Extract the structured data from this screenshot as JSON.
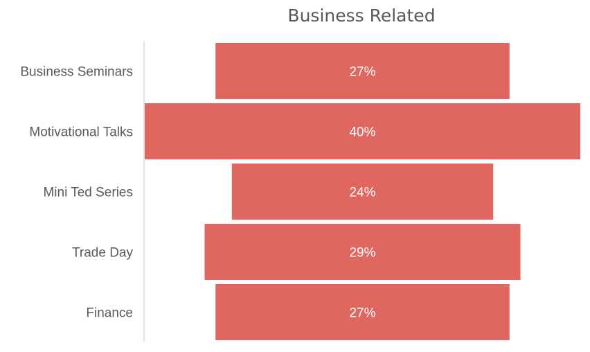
{
  "chart_data": {
    "type": "funnel",
    "title": "Business Related",
    "categories": [
      "Business Seminars",
      "Motivational Talks",
      "Mini Ted Series",
      "Trade Day",
      "Finance"
    ],
    "values": [
      27,
      40,
      24,
      29,
      27
    ],
    "data_labels": [
      "27%",
      "40%",
      "24%",
      "29%",
      "27%"
    ],
    "unit": "%",
    "bar_color": "#E06660",
    "label_color": "#FFFFFF",
    "grid": false,
    "legend": "none"
  }
}
